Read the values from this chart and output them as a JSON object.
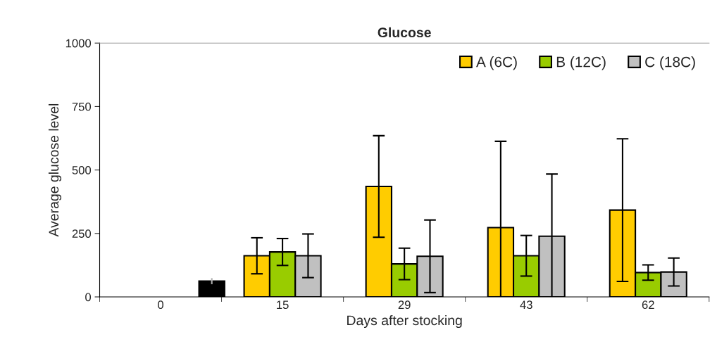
{
  "chart_data": {
    "type": "bar",
    "title": "Glucose",
    "xlabel": "Days after stocking",
    "ylabel": "Average glucose level",
    "categories": [
      "0",
      "15",
      "29",
      "43",
      "62"
    ],
    "series": [
      {
        "name": "A (6C)",
        "color": "#ffcc00",
        "values": [
          null,
          162,
          435,
          273,
          342
        ],
        "errors": [
          null,
          71,
          200,
          [
            0,
            613
          ],
          281
        ]
      },
      {
        "name": "B (12C)",
        "color": "#99cc00",
        "values": [
          null,
          177,
          130,
          162,
          96
        ],
        "errors": [
          null,
          53,
          62,
          80,
          30
        ]
      },
      {
        "name": "C (18C)",
        "color": "#c0c0c0",
        "values": [
          null,
          162,
          160,
          239,
          98
        ],
        "errors": [
          null,
          86,
          143,
          [
            0,
            484
          ],
          55
        ]
      },
      {
        "color": "#000000",
        "values": [
          62,
          null,
          null,
          null,
          null
        ],
        "errors": [
          12,
          null,
          null,
          null,
          null
        ]
      }
    ],
    "ylim": [
      0,
      1000
    ],
    "yticks": [
      0,
      250,
      500,
      750,
      1000
    ],
    "grid": false,
    "legend": "top right"
  }
}
